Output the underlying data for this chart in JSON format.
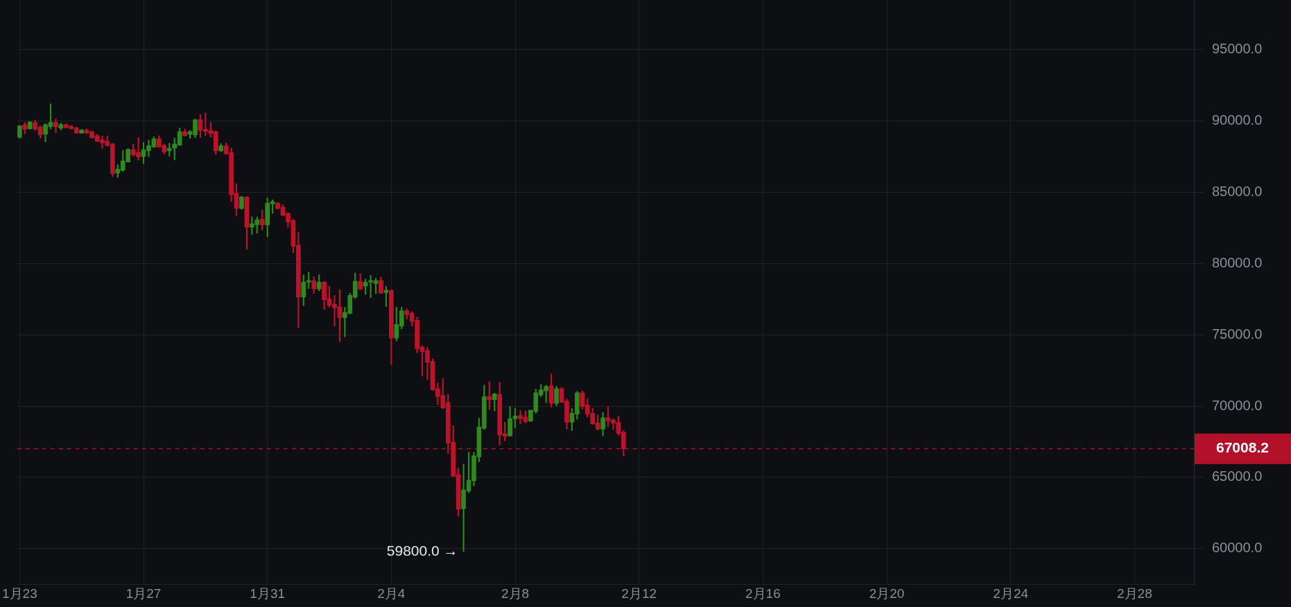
{
  "chart_data": {
    "type": "candlestick",
    "categories": [
      "1月23",
      null,
      null,
      null,
      null,
      null,
      null,
      null,
      null,
      null,
      null,
      null,
      null,
      null,
      null,
      null,
      null,
      null,
      null,
      null,
      null,
      null,
      null,
      null,
      "1月27",
      null,
      null,
      null,
      null,
      null,
      null,
      null,
      null,
      null,
      null,
      null,
      null,
      null,
      null,
      null,
      null,
      null,
      null,
      null,
      null,
      null,
      null,
      null,
      "1月31",
      null,
      null,
      null,
      null,
      null,
      null,
      null,
      null,
      null,
      null,
      null,
      null,
      null,
      null,
      null,
      null,
      null,
      null,
      null,
      null,
      null,
      null,
      null,
      "2月4",
      null,
      null,
      null,
      null,
      null,
      null,
      null,
      null,
      null,
      null,
      null,
      null,
      null,
      null,
      null,
      null,
      null,
      null,
      null,
      null,
      null,
      null,
      null,
      "2月8",
      null,
      null,
      null,
      null,
      null,
      null,
      null,
      null,
      null,
      null,
      null,
      null,
      null,
      null,
      null,
      null,
      null,
      null,
      null,
      null,
      null,
      null,
      null,
      "2月12",
      null,
      null,
      null,
      null,
      null,
      null,
      null,
      null,
      null,
      null,
      null,
      null,
      null,
      null,
      null,
      null,
      null,
      null,
      null,
      null,
      null,
      null,
      null,
      "2月16",
      null,
      null,
      null,
      null,
      null,
      null,
      null,
      null,
      null,
      null,
      null,
      null,
      null,
      null,
      null,
      null,
      null,
      null,
      null,
      null,
      null,
      null,
      null,
      "2月20",
      null,
      null,
      null,
      null,
      null,
      null,
      null,
      null,
      null,
      null,
      null,
      null,
      null,
      null,
      null,
      null,
      null,
      null,
      null,
      null,
      null,
      null,
      null,
      "2月24",
      null,
      null,
      null,
      null,
      null,
      null,
      null,
      null,
      null,
      null,
      null,
      null,
      null,
      null,
      null,
      null,
      null,
      null,
      null,
      null,
      null,
      null,
      null,
      "2月28",
      null,
      null,
      null,
      null,
      null,
      null,
      null,
      null,
      null,
      null,
      null
    ],
    "ohlc": [
      [
        88870,
        89700,
        88800,
        89670
      ],
      [
        89750,
        89910,
        89110,
        89430
      ],
      [
        89460,
        89990,
        89430,
        89940
      ],
      [
        89910,
        90060,
        89350,
        89430
      ],
      [
        89590,
        89670,
        88820,
        89030
      ],
      [
        89080,
        89830,
        88550,
        89750
      ],
      [
        89620,
        91210,
        89460,
        89910
      ],
      [
        89910,
        90140,
        89190,
        89590
      ],
      [
        89510,
        89870,
        89390,
        89750
      ],
      [
        89750,
        89830,
        89510,
        89550
      ],
      [
        89630,
        89700,
        89430,
        89460
      ],
      [
        89540,
        89590,
        89140,
        89160
      ],
      [
        89160,
        89430,
        89140,
        89380
      ],
      [
        89350,
        89460,
        89140,
        89160
      ],
      [
        89270,
        89310,
        88790,
        88840
      ],
      [
        88980,
        89080,
        88550,
        88580
      ],
      [
        88690,
        88950,
        88100,
        88470
      ],
      [
        88580,
        88950,
        88230,
        88280
      ],
      [
        88390,
        88440,
        86110,
        86310
      ],
      [
        86360,
        86950,
        86040,
        86630
      ],
      [
        86550,
        87940,
        86470,
        87220
      ],
      [
        87140,
        88070,
        87110,
        88020
      ],
      [
        87990,
        88390,
        87540,
        87640
      ],
      [
        87800,
        88870,
        87270,
        87480
      ],
      [
        87510,
        88500,
        87000,
        87990
      ],
      [
        87910,
        88660,
        87510,
        88280
      ],
      [
        88180,
        88900,
        88150,
        88760
      ],
      [
        88760,
        88980,
        88150,
        88180
      ],
      [
        88310,
        88390,
        87700,
        87830
      ],
      [
        87910,
        88440,
        87540,
        88100
      ],
      [
        88100,
        88820,
        87270,
        88390
      ],
      [
        88310,
        89510,
        88280,
        89270
      ],
      [
        89270,
        89460,
        88950,
        88980
      ],
      [
        89080,
        89350,
        88790,
        89270
      ],
      [
        89030,
        90140,
        88840,
        90100
      ],
      [
        90100,
        90460,
        88840,
        89350
      ],
      [
        89430,
        90580,
        88980,
        89270
      ],
      [
        89350,
        89910,
        88870,
        89140
      ],
      [
        89270,
        89310,
        87670,
        87910
      ],
      [
        87910,
        88420,
        87860,
        88280
      ],
      [
        88280,
        88470,
        87670,
        87700
      ],
      [
        87800,
        88120,
        84350,
        84830
      ],
      [
        84930,
        85600,
        83360,
        83870
      ],
      [
        83870,
        84720,
        83810,
        84670
      ],
      [
        84670,
        84720,
        81000,
        82560
      ],
      [
        82560,
        83280,
        82040,
        82800
      ],
      [
        82720,
        83280,
        82120,
        83070
      ],
      [
        83120,
        83760,
        82370,
        82720
      ],
      [
        82720,
        84610,
        81880,
        84240
      ],
      [
        84190,
        84480,
        83520,
        84350
      ],
      [
        84240,
        84290,
        83810,
        83870
      ],
      [
        83970,
        84130,
        83360,
        83390
      ],
      [
        83520,
        83600,
        82560,
        82910
      ],
      [
        83040,
        83120,
        80770,
        81210
      ],
      [
        81290,
        82210,
        75510,
        77650
      ],
      [
        77650,
        79210,
        77060,
        78700
      ],
      [
        78700,
        79400,
        78250,
        78810
      ],
      [
        78810,
        79080,
        77900,
        78220
      ],
      [
        78220,
        79210,
        78090,
        78700
      ],
      [
        78700,
        78760,
        76780,
        77460
      ],
      [
        77540,
        78410,
        76940,
        77060
      ],
      [
        77170,
        77770,
        75620,
        76900
      ],
      [
        76980,
        78170,
        74550,
        76210
      ],
      [
        76210,
        76940,
        74870,
        76580
      ],
      [
        76500,
        77930,
        76470,
        77770
      ],
      [
        77650,
        79340,
        77540,
        78760
      ],
      [
        78760,
        79290,
        78170,
        78220
      ],
      [
        78420,
        78920,
        77850,
        78700
      ],
      [
        78700,
        79180,
        77610,
        78810
      ],
      [
        78600,
        78970,
        77900,
        78810
      ],
      [
        78810,
        79050,
        77900,
        77930
      ],
      [
        77970,
        78410,
        76980,
        78130
      ],
      [
        78130,
        78170,
        72910,
        74770
      ],
      [
        74770,
        76940,
        74580,
        75730
      ],
      [
        75620,
        76940,
        75410,
        76690
      ],
      [
        76690,
        76850,
        76100,
        76420
      ],
      [
        76530,
        76630,
        75620,
        75940
      ],
      [
        76020,
        76260,
        73750,
        74020
      ],
      [
        74140,
        74230,
        72110,
        73820
      ],
      [
        73910,
        74140,
        71870,
        73070
      ],
      [
        73140,
        73310,
        71100,
        71150
      ],
      [
        71230,
        71630,
        70110,
        70670
      ],
      [
        70750,
        71950,
        69820,
        69870
      ],
      [
        70270,
        70830,
        66680,
        67400
      ],
      [
        67480,
        68640,
        65080,
        65080
      ],
      [
        65200,
        65670,
        62260,
        62770
      ],
      [
        62800,
        65930,
        59800,
        64130
      ],
      [
        64050,
        66760,
        63920,
        64810
      ],
      [
        64760,
        66760,
        64400,
        66520
      ],
      [
        66440,
        69150,
        66090,
        68550
      ],
      [
        68440,
        71470,
        68360,
        70670
      ],
      [
        70670,
        71710,
        69760,
        70460
      ],
      [
        70460,
        70910,
        69660,
        70860
      ],
      [
        70830,
        71680,
        67270,
        67960
      ],
      [
        68070,
        68870,
        67560,
        67880
      ],
      [
        67910,
        69980,
        67880,
        69120
      ],
      [
        69120,
        69870,
        68480,
        69310
      ],
      [
        69340,
        69710,
        68750,
        69120
      ],
      [
        69230,
        69660,
        68830,
        68910
      ],
      [
        68950,
        69740,
        68910,
        69710
      ],
      [
        69630,
        71200,
        69500,
        70940
      ],
      [
        70780,
        71520,
        70670,
        71150
      ],
      [
        71070,
        71470,
        70240,
        71390
      ],
      [
        71420,
        72270,
        69920,
        70190
      ],
      [
        70190,
        71390,
        70030,
        71230
      ],
      [
        71230,
        71310,
        70240,
        70270
      ],
      [
        70350,
        70510,
        68390,
        68870
      ],
      [
        68870,
        69820,
        68280,
        69500
      ],
      [
        69440,
        71040,
        69070,
        70940
      ],
      [
        70940,
        71070,
        69790,
        69980
      ],
      [
        70080,
        70510,
        69230,
        69440
      ],
      [
        69500,
        69870,
        68710,
        68750
      ],
      [
        68830,
        69390,
        68320,
        68390
      ],
      [
        68390,
        69550,
        67910,
        69190
      ],
      [
        69190,
        69980,
        68550,
        68960
      ],
      [
        69030,
        69120,
        68360,
        68800
      ],
      [
        68870,
        69280,
        67960,
        68070
      ],
      [
        68160,
        68280,
        66520,
        67008.2
      ],
      null,
      null,
      null,
      null,
      null,
      null,
      null,
      null,
      null,
      null,
      null,
      null,
      null,
      null,
      null,
      null,
      null,
      null,
      null,
      null,
      null,
      null,
      null,
      null,
      null,
      null,
      null,
      null,
      null,
      null,
      null,
      null,
      null,
      null,
      null,
      null,
      null,
      null,
      null,
      null,
      null,
      null,
      null,
      null,
      null,
      null,
      null,
      null,
      null,
      null,
      null,
      null,
      null,
      null,
      null,
      null,
      null,
      null,
      null,
      null,
      null,
      null,
      null,
      null,
      null,
      null,
      null,
      null,
      null,
      null,
      null,
      null,
      null,
      null,
      null,
      null,
      null,
      null,
      null,
      null,
      null,
      null,
      null,
      null,
      null,
      null,
      null,
      null,
      null,
      null,
      null,
      null,
      null,
      null,
      null,
      null,
      null,
      null,
      null,
      null,
      null,
      null,
      null,
      null,
      null,
      null,
      null,
      null,
      null,
      null
    ],
    "colors": [
      "#2e8a1c",
      "#c0112b",
      "#2e8a1c",
      "#c0112b",
      "#c0112b",
      "#2e8a1c",
      "#2e8a1c",
      "#c0112b",
      "#2e8a1c",
      "#c0112b",
      "#c0112b",
      "#c0112b",
      "#2e8a1c",
      "#c0112b",
      "#c0112b",
      "#c0112b",
      "#c0112b",
      "#c0112b",
      "#c0112b",
      "#2e8a1c",
      "#2e8a1c",
      "#2e8a1c",
      "#c0112b",
      "#c0112b",
      "#2e8a1c",
      "#2e8a1c",
      "#2e8a1c",
      "#c0112b",
      "#c0112b",
      "#2e8a1c",
      "#2e8a1c",
      "#2e8a1c",
      "#c0112b",
      "#2e8a1c",
      "#2e8a1c",
      "#c0112b",
      "#c0112b",
      "#c0112b",
      "#c0112b",
      "#2e8a1c",
      "#c0112b",
      "#c0112b",
      "#c0112b",
      "#2e8a1c",
      "#c0112b",
      "#2e8a1c",
      "#2e8a1c",
      "#c0112b",
      "#2e8a1c",
      "#2e8a1c",
      "#c0112b",
      "#c0112b",
      "#c0112b",
      "#c0112b",
      "#c0112b",
      "#2e8a1c",
      "#2e8a1c",
      "#c0112b",
      "#2e8a1c",
      "#c0112b",
      "#c0112b",
      "#c0112b",
      "#c0112b",
      "#2e8a1c",
      "#2e8a1c",
      "#2e8a1c",
      "#c0112b",
      "#2e8a1c",
      "#2e8a1c",
      "#2e8a1c",
      "#c0112b",
      "#2e8a1c",
      "#c0112b",
      "#2e8a1c",
      "#2e8a1c",
      "#c0112b",
      "#c0112b",
      "#c0112b",
      "#c0112b",
      "#c0112b",
      "#c0112b",
      "#c0112b",
      "#c0112b",
      "#c0112b",
      "#c0112b",
      "#c0112b",
      "#2e8a1c",
      "#2e8a1c",
      "#2e8a1c",
      "#2e8a1c",
      "#2e8a1c",
      "#c0112b",
      "#2e8a1c",
      "#c0112b",
      "#c0112b",
      "#2e8a1c",
      "#2e8a1c",
      "#c0112b",
      "#c0112b",
      "#2e8a1c",
      "#2e8a1c",
      "#2e8a1c",
      "#2e8a1c",
      "#c0112b",
      "#2e8a1c",
      "#c0112b",
      "#c0112b",
      "#2e8a1c",
      "#2e8a1c",
      "#c0112b",
      "#c0112b",
      "#c0112b",
      "#c0112b",
      "#2e8a1c",
      "#c0112b",
      "#c0112b",
      "#c0112b",
      "#c0112b",
      null,
      null,
      null,
      null,
      null,
      null,
      null,
      null,
      null,
      null,
      null,
      null,
      null,
      null,
      null,
      null,
      null,
      null,
      null,
      null,
      null,
      null,
      null,
      null,
      null,
      null,
      null,
      null,
      null,
      null,
      null,
      null,
      null,
      null,
      null,
      null,
      null,
      null,
      null,
      null,
      null,
      null,
      null,
      null,
      null,
      null,
      null,
      null,
      null,
      null,
      null,
      null,
      null,
      null,
      null,
      null,
      null,
      null,
      null,
      null,
      null,
      null,
      null,
      null,
      null,
      null,
      null,
      null,
      null,
      null,
      null,
      null,
      null,
      null,
      null,
      null,
      null,
      null,
      null,
      null,
      null,
      null,
      null,
      null,
      null,
      null,
      null,
      null,
      null,
      null,
      null,
      null,
      null,
      null,
      null,
      null,
      null,
      null,
      null,
      null,
      null,
      null,
      null,
      null,
      null,
      null,
      null,
      null,
      null,
      null
    ],
    "ylim": [
      57500,
      98500
    ],
    "yticks": [
      {
        "value": 60000,
        "label": "60000.0"
      },
      {
        "value": 65000,
        "label": "65000.0"
      },
      {
        "value": 70000,
        "label": "70000.0"
      },
      {
        "value": 75000,
        "label": "75000.0"
      },
      {
        "value": 80000,
        "label": "80000.0"
      },
      {
        "value": 85000,
        "label": "85000.0"
      },
      {
        "value": 90000,
        "label": "90000.0"
      },
      {
        "value": 95000,
        "label": "95000.0"
      }
    ],
    "ref_lines": [
      {
        "axis": "y",
        "value": 67008.2,
        "label": "67008.2",
        "color": "#b3102a",
        "line_style": "dashed"
      }
    ],
    "annotations": [
      "59800.0 →"
    ],
    "grid": true,
    "legend": false
  }
}
